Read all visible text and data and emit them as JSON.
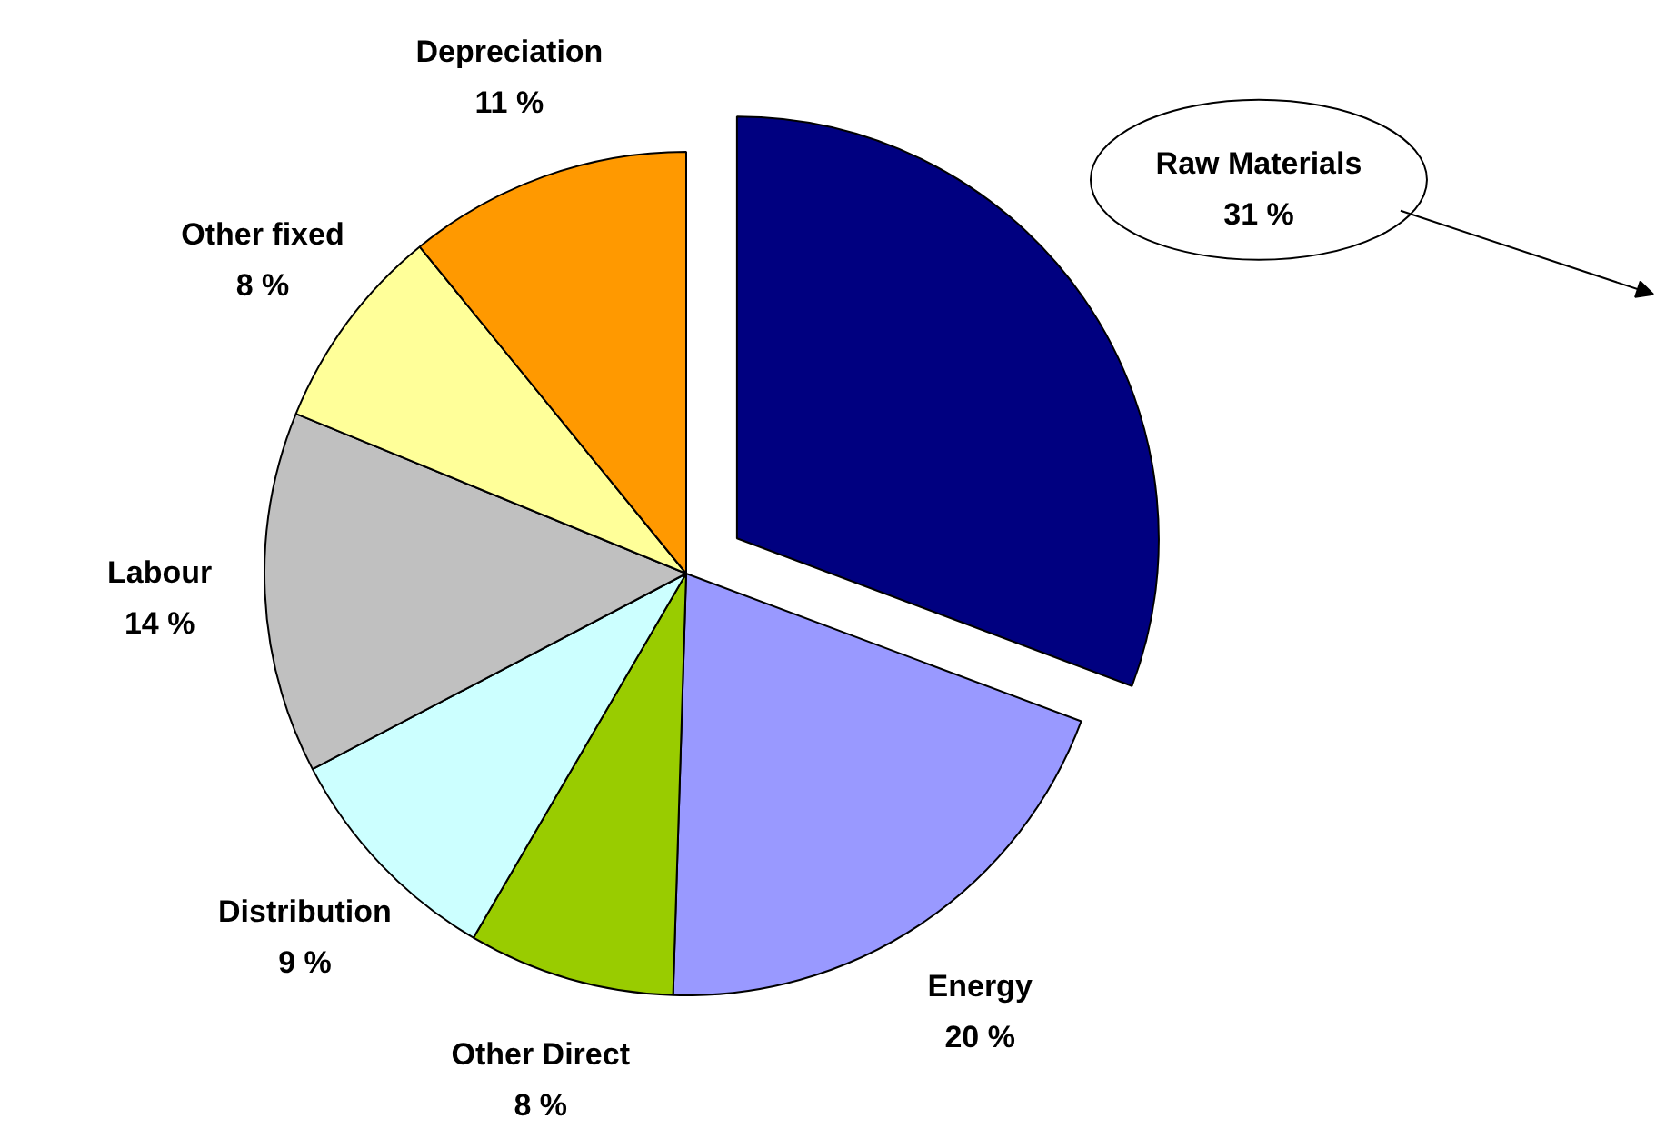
{
  "chart_data": {
    "type": "pie",
    "categories": [
      "Raw Materials",
      "Energy",
      "Other Direct",
      "Distribution",
      "Labour",
      "Other fixed",
      "Depreciation"
    ],
    "values": [
      31,
      20,
      8,
      9,
      14,
      8,
      11
    ],
    "colors": [
      "#000080",
      "#9999ff",
      "#99cc00",
      "#ccffff",
      "#c0c0c0",
      "#ffff99",
      "#ff9900"
    ],
    "value_labels": [
      "31 %",
      "20 %",
      "8 %",
      "9 %",
      "14 %",
      "8 %",
      "11 %"
    ]
  }
}
